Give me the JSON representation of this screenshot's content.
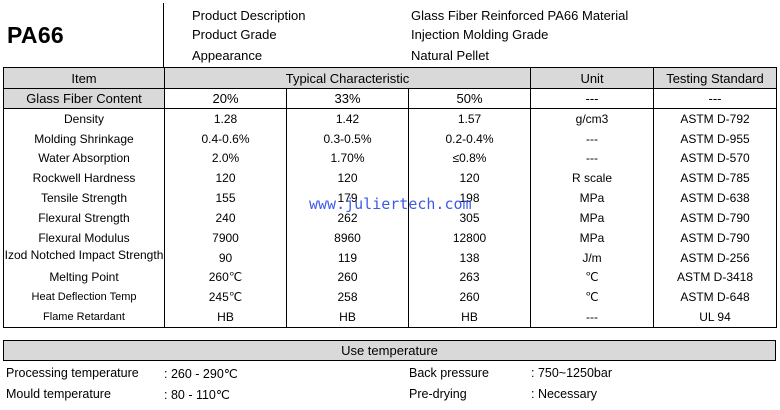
{
  "header": {
    "material": "PA66",
    "labels": [
      "Product Description",
      "Product Grade",
      "Appearance"
    ],
    "values": [
      "Glass Fiber Reinforced PA66 Material",
      "Injection Molding Grade",
      "Natural Pellet"
    ]
  },
  "table": {
    "col_item": "Item",
    "col_typical": "Typical Characteristic",
    "col_unit": "Unit",
    "col_standard": "Testing Standard",
    "glass_fiber_label": "Glass Fiber Content",
    "glass_fiber_levels": [
      "20%",
      "33%",
      "50%"
    ],
    "unit_dash": "---",
    "standard_dash": "---",
    "rows": [
      {
        "name": "Density",
        "v": [
          "1.28",
          "1.42",
          "1.57"
        ],
        "unit": "g/cm3",
        "std": "ASTM D-792"
      },
      {
        "name": "Molding Shrinkage",
        "v": [
          "0.4-0.6%",
          "0.3-0.5%",
          "0.2-0.4%"
        ],
        "unit": "---",
        "std": "ASTM D-955"
      },
      {
        "name": "Water Absorption",
        "v": [
          "2.0%",
          "1.70%",
          "≤0.8%"
        ],
        "unit": "---",
        "std": "ASTM D-570"
      },
      {
        "name": "Rockwell Hardness",
        "v": [
          "120",
          "120",
          "120"
        ],
        "unit": "R scale",
        "std": "ASTM D-785"
      },
      {
        "name": "Tensile Strength",
        "v": [
          "155",
          "179",
          "198"
        ],
        "unit": "MPa",
        "std": "ASTM D-638"
      },
      {
        "name": "Flexural Strength",
        "v": [
          "240",
          "262",
          "305"
        ],
        "unit": "MPa",
        "std": "ASTM D-790"
      },
      {
        "name": "Flexural Modulus",
        "v": [
          "7900",
          "8960",
          "12800"
        ],
        "unit": "MPa",
        "std": "ASTM D-790"
      },
      {
        "name": "Izod Notched Impact Strength",
        "v": [
          "90",
          "119",
          "138"
        ],
        "unit": "J/m",
        "std": "ASTM D-256"
      },
      {
        "name": "Melting Point",
        "v": [
          "260℃",
          "260",
          "263"
        ],
        "unit": "℃",
        "std": "ASTM D-3418"
      },
      {
        "name": "Heat Deflection Temp",
        "v": [
          "245℃",
          "258",
          "260"
        ],
        "unit": "℃",
        "std": "ASTM D-648"
      },
      {
        "name": "Flame Retardant",
        "v": [
          "HB",
          "HB",
          "HB"
        ],
        "unit": "---",
        "std": "UL 94"
      }
    ]
  },
  "use_temperature": {
    "title": "Use temperature",
    "processing_label": "Processing temperature",
    "processing_value": ": 260 - 290℃",
    "back_pressure_label": "Back pressure",
    "back_pressure_value": ": 750~1250bar",
    "mould_label": "Mould temperature",
    "mould_value": ": 80 - 110℃",
    "predrying_label": "Pre-drying",
    "predrying_value": ": Necessary"
  },
  "watermark": "www.juliertech.com"
}
